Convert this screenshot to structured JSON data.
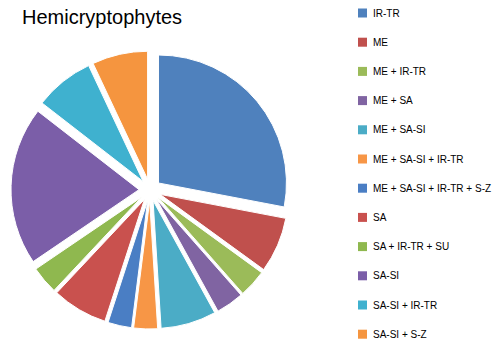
{
  "chart_data": {
    "type": "pie",
    "title": "Hemicryptophytes",
    "categories": [
      "IR-TR",
      "ME",
      "ME + IR-TR",
      "ME + SA",
      "ME + SA-SI",
      "ME + SA-SI + IR-TR",
      "ME + SA-SI + IR-TR + S-Z",
      "SA",
      "SA + IR-TR + SU",
      "SA-SI",
      "SA-SI + IR-TR",
      "SA-SI + S-Z"
    ],
    "values": [
      28,
      7,
      3.5,
      3.5,
      7,
      3,
      3,
      7,
      3.5,
      20,
      7.5,
      7
    ],
    "colors": [
      "#4f81bd",
      "#c0504d",
      "#9bbb59",
      "#8064a2",
      "#4bacc6",
      "#f79646",
      "#4a7ec4",
      "#c9514e",
      "#8fb84f",
      "#7b5ea8",
      "#3fb1cf",
      "#f5953f"
    ],
    "legend": "right",
    "data_labels": false
  }
}
